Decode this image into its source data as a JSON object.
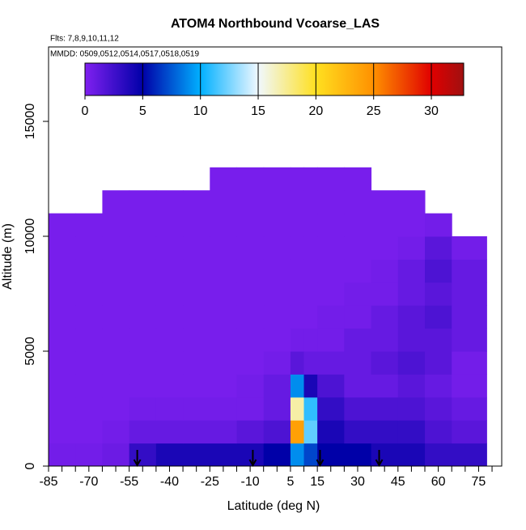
{
  "chart_data": {
    "type": "heatmap",
    "title": "ATOM4 Northbound Vcoarse_LAS",
    "subtitle": "Flts: 7,8,9,10,11,12",
    "note": "MMDD: 0509,0512,0514,0517,0518,0519",
    "x_label": "Latitude (deg N)",
    "y_label": "Altitude (m)",
    "xlim": [
      -85,
      83.6
    ],
    "xticks": [
      -85,
      -70,
      -55,
      -40,
      -25,
      -10,
      5,
      15,
      30,
      45,
      60,
      75
    ],
    "xminorticks": [
      -80,
      -75,
      -65,
      -60,
      -50,
      -45,
      -35,
      -30,
      -20,
      -15,
      -5,
      0,
      10,
      20,
      25,
      35,
      40,
      50,
      55,
      65,
      70,
      80
    ],
    "ylim": [
      0,
      18240
    ],
    "yticks": [
      0,
      5000,
      10000,
      15000
    ],
    "x_edges": [
      -85,
      -75,
      -65,
      -55,
      -45,
      -35,
      -25,
      -15,
      -5,
      5,
      10,
      15,
      25,
      35,
      45,
      55,
      65,
      78
    ],
    "y_edges": [
      0,
      1000,
      2000,
      3000,
      4000,
      5000,
      6000,
      7000,
      8000,
      9000,
      10000,
      11000,
      12000,
      13000
    ],
    "z": [
      [
        0.5,
        0.5,
        0.8,
        3,
        4,
        4,
        4,
        4,
        5,
        9,
        7,
        5,
        5,
        4,
        4,
        3,
        3
      ],
      [
        0.3,
        0.3,
        0.5,
        1,
        1,
        1,
        1,
        1.5,
        2,
        24,
        12,
        4,
        3,
        3,
        3,
        2,
        1.5
      ],
      [
        0.3,
        0.3,
        0.3,
        0.5,
        0.5,
        0.5,
        0.5,
        0.5,
        1,
        17,
        11,
        3,
        2,
        2,
        2,
        1.5,
        1
      ],
      [
        0.3,
        0.3,
        0.3,
        0.3,
        0.3,
        0.3,
        0.3,
        0.5,
        1,
        9,
        4,
        2,
        1,
        1,
        1.5,
        1,
        0.5
      ],
      [
        0.3,
        0.3,
        0.3,
        0.3,
        0.3,
        0.3,
        0.3,
        0.3,
        0.5,
        1.5,
        1,
        1,
        1,
        1.5,
        2,
        1.5,
        0.5
      ],
      [
        0.3,
        0.3,
        0.3,
        0.3,
        0.3,
        0.3,
        0.3,
        0.3,
        0.3,
        0.5,
        0.5,
        0.5,
        1,
        1,
        1.5,
        1.5,
        1
      ],
      [
        0.3,
        0.3,
        0.3,
        0.3,
        0.3,
        0.3,
        0.3,
        0.3,
        0.3,
        0.3,
        0.3,
        0.5,
        0.5,
        1,
        1.5,
        2,
        1
      ],
      [
        0.3,
        0.3,
        0.3,
        0.3,
        0.3,
        0.3,
        0.3,
        0.3,
        0.3,
        0.3,
        0.3,
        0.3,
        0.5,
        0.5,
        1,
        1.5,
        1
      ],
      [
        0.3,
        0.3,
        0.3,
        0.3,
        0.3,
        0.3,
        0.3,
        0.3,
        0.3,
        0.3,
        0.3,
        0.3,
        0.3,
        0.5,
        1,
        2,
        1
      ],
      [
        0.3,
        0.3,
        0.3,
        0.3,
        0.3,
        0.3,
        0.3,
        0.3,
        0.3,
        0.3,
        0.3,
        0.3,
        0.3,
        0.3,
        0.5,
        1.5,
        0.5
      ],
      [
        0.3,
        0.3,
        0.3,
        0.3,
        0.3,
        0.3,
        0.3,
        0.3,
        0.3,
        0.3,
        0.3,
        0.3,
        0.3,
        0.3,
        0.3,
        0.5,
        null
      ],
      [
        null,
        null,
        0.3,
        0.3,
        0.3,
        0.3,
        0.3,
        0.3,
        0.3,
        0.3,
        0.3,
        0.3,
        0.3,
        0.3,
        0.3,
        null,
        null
      ],
      [
        null,
        null,
        null,
        null,
        null,
        null,
        0.3,
        0.3,
        0.3,
        0.3,
        0.3,
        0.3,
        0.3,
        null,
        null,
        null,
        null
      ]
    ],
    "arrows": [
      -52,
      -9,
      16,
      38
    ],
    "colorbar_lim": [
      0,
      32.8
    ],
    "colorbar_ticks": [
      0,
      5,
      10,
      15,
      20,
      25,
      30
    ],
    "colorscale": [
      [
        0,
        "#8020f0"
      ],
      [
        5,
        "#0000a8"
      ],
      [
        10,
        "#00b0ff"
      ],
      [
        15,
        "#f0f8ff"
      ],
      [
        20,
        "#ffe020"
      ],
      [
        25,
        "#ff9000"
      ],
      [
        30,
        "#e00000"
      ],
      [
        32.8,
        "#a01010"
      ]
    ]
  }
}
